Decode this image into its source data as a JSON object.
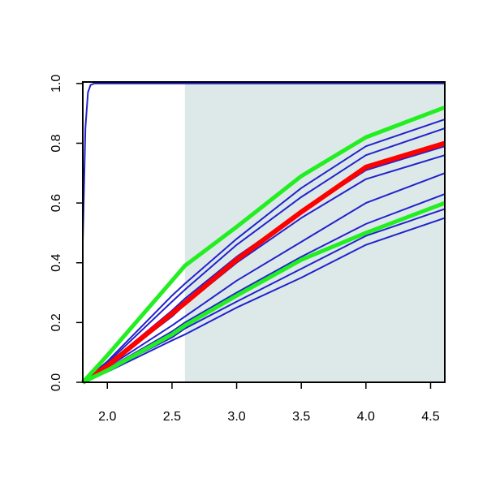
{
  "chart_data": {
    "type": "line",
    "xlim": [
      1.81,
      4.61
    ],
    "ylim": [
      0,
      1.005
    ],
    "xticks": [
      {
        "value": 2,
        "label": "2.0"
      },
      2.5,
      {
        "value": 3,
        "label": "3.0"
      },
      3.5,
      {
        "value": 4,
        "label": "4.0"
      },
      4.5
    ],
    "yticks": [
      {
        "value": 0,
        "label": "0.0"
      },
      0.2,
      0.4,
      0.6,
      0.8,
      {
        "value": 1,
        "label": "1.0"
      }
    ],
    "shaded_xrange": [
      2.6,
      4.61
    ],
    "shade_color": "#dde9e9",
    "x": [
      1.81,
      2.0,
      2.5,
      2.6,
      3.0,
      3.5,
      4.0,
      4.61
    ],
    "series": [
      {
        "color": "#2222cc",
        "width": 2,
        "x": [
          1.81,
          1.83,
          1.85,
          1.87,
          1.9,
          4.61
        ],
        "values": [
          0.47,
          0.85,
          0.97,
          0.995,
          1,
          1
        ]
      },
      {
        "color": "#2222cc",
        "width": 2,
        "values": [
          0,
          0.07,
          0.29,
          0.33,
          0.48,
          0.65,
          0.79,
          0.88
        ]
      },
      {
        "color": "#2222cc",
        "width": 2,
        "values": [
          0,
          0.065,
          0.27,
          0.31,
          0.46,
          0.62,
          0.76,
          0.85
        ]
      },
      {
        "color": "#2222cc",
        "width": 2,
        "values": [
          0,
          0.06,
          0.24,
          0.28,
          0.42,
          0.57,
          0.71,
          0.79
        ]
      },
      {
        "color": "#2222cc",
        "width": 2,
        "values": [
          0,
          0.055,
          0.22,
          0.26,
          0.4,
          0.55,
          0.68,
          0.76
        ]
      },
      {
        "color": "#2222cc",
        "width": 2,
        "values": [
          0,
          0.05,
          0.19,
          0.22,
          0.34,
          0.47,
          0.6,
          0.7
        ]
      },
      {
        "color": "#2222cc",
        "width": 2,
        "values": [
          0,
          0.045,
          0.17,
          0.2,
          0.3,
          0.42,
          0.53,
          0.63
        ]
      },
      {
        "color": "#2222cc",
        "width": 2,
        "values": [
          0,
          0.04,
          0.15,
          0.18,
          0.27,
          0.38,
          0.49,
          0.58
        ]
      },
      {
        "color": "#2222cc",
        "width": 2,
        "values": [
          0,
          0.035,
          0.14,
          0.16,
          0.25,
          0.35,
          0.46,
          0.55
        ]
      },
      {
        "color": "#ff0000",
        "width": 6,
        "values": [
          0,
          0.055,
          0.23,
          0.265,
          0.41,
          0.57,
          0.72,
          0.8
        ]
      },
      {
        "color": "#22ee22",
        "width": 5,
        "values": [
          0,
          0.09,
          0.34,
          0.39,
          0.52,
          0.69,
          0.82,
          0.92
        ]
      },
      {
        "color": "#22ee22",
        "width": 5,
        "values": [
          0,
          0.04,
          0.16,
          0.19,
          0.29,
          0.41,
          0.5,
          0.6
        ]
      }
    ]
  }
}
